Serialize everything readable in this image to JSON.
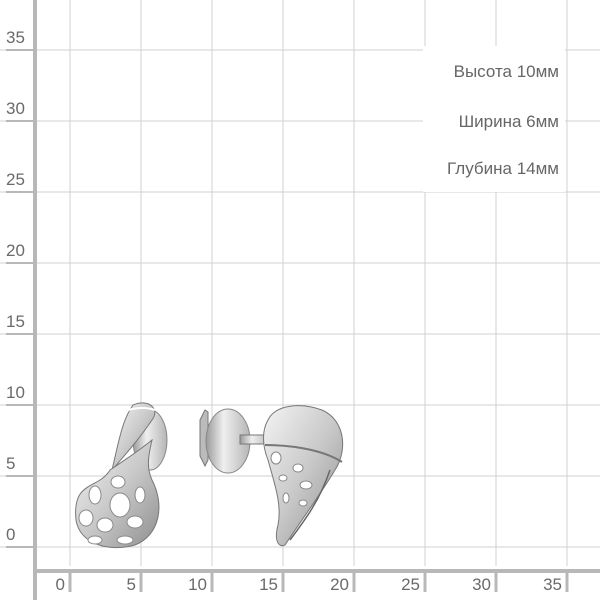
{
  "grid": {
    "x_ticks": [
      "0",
      "5",
      "10",
      "15",
      "20",
      "25",
      "30",
      "35"
    ],
    "y_ticks": [
      "0",
      "5",
      "10",
      "15",
      "20",
      "25",
      "30",
      "35"
    ],
    "grid_color": "#d0d0d0",
    "axis_color": "#b8b8b8",
    "label_color": "#6a6a6a"
  },
  "dimensions": {
    "height": "Высота  10мм",
    "width": "Ширина  6мм",
    "depth": "Глубина 14мм"
  },
  "product": {
    "image": "silver-openwork-stud-earrings",
    "metal_color": "#c8c8c8"
  }
}
